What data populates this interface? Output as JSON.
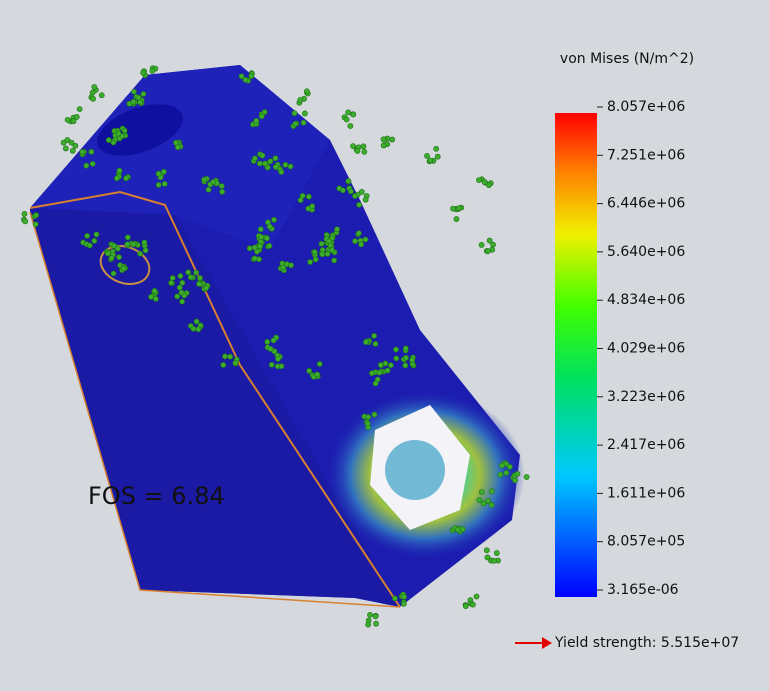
{
  "legend": {
    "title": "von Mises (N/m^2)",
    "labels": [
      "8.057e+06",
      "7.251e+06",
      "6.446e+06",
      "5.640e+06",
      "4.834e+06",
      "4.029e+06",
      "3.223e+06",
      "2.417e+06",
      "1.611e+06",
      "8.057e+05",
      "3.165e-06"
    ]
  },
  "annotations": {
    "fos": "FOS = 6.84",
    "yield": "Yield strength: 5.515e+07"
  }
}
